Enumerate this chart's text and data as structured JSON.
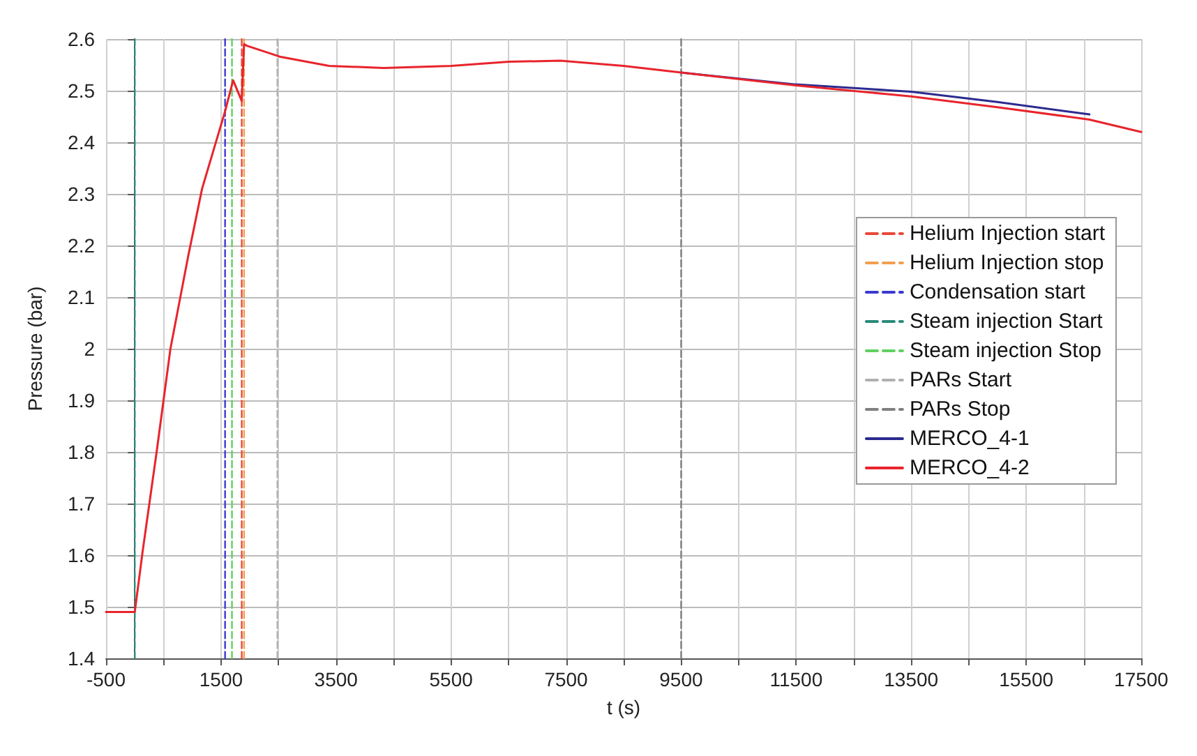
{
  "chart_data": {
    "type": "line",
    "xlabel": "t (s)",
    "ylabel": "Pressure (bar)",
    "xlim": [
      -500,
      17500
    ],
    "xticks": [
      -500,
      {
        "value": 500,
        "label": null
      },
      1500,
      {
        "value": 2500,
        "label": null
      },
      3500,
      {
        "value": 4500,
        "label": null
      },
      5500,
      {
        "value": 6500,
        "label": null
      },
      7500,
      {
        "value": 8500,
        "label": null
      },
      9500,
      {
        "value": 10500,
        "label": null
      },
      11500,
      {
        "value": 12500,
        "label": null
      },
      13500,
      {
        "value": 14500,
        "label": null
      },
      15500,
      {
        "value": 16500,
        "label": null
      },
      17500
    ],
    "ylim": [
      1.4,
      2.6
    ],
    "yticks": [
      1.4,
      1.5,
      1.6,
      1.7,
      1.8,
      1.9,
      2.0,
      2.1,
      2.2,
      2.3,
      2.4,
      2.5,
      2.6
    ],
    "grid": true,
    "legend": "right",
    "marker": "none",
    "series": [
      {
        "name": "Helium Injection start",
        "color": "#e84a3a",
        "line_style": "dashed",
        "x": [
          1860,
          1860
        ],
        "values": [
          1.4,
          2.6
        ]
      },
      {
        "name": "Helium Injection stop",
        "color": "#f0a050",
        "line_style": "dashed",
        "x": [
          1900,
          1900
        ],
        "values": [
          1.4,
          2.6
        ]
      },
      {
        "name": "Condensation start",
        "color": "#3a3ad0",
        "line_style": "dashed",
        "x": [
          1570,
          1570
        ],
        "values": [
          1.4,
          2.6
        ]
      },
      {
        "name": "Steam injection Start",
        "color": "#2a8a7a",
        "line_style": "dashed",
        "x": [
          0,
          0
        ],
        "values": [
          1.4,
          2.6
        ]
      },
      {
        "name": "Steam injection Stop",
        "color": "#60d060",
        "line_style": "dashed",
        "x": [
          1690,
          1690
        ],
        "values": [
          1.4,
          2.6
        ]
      },
      {
        "name": "PARs Start",
        "color": "#b0b0b0",
        "line_style": "dashed",
        "x": [
          2480,
          2480
        ],
        "values": [
          1.4,
          2.6
        ]
      },
      {
        "name": "PARs Stop",
        "color": "#808080",
        "line_style": "dashed",
        "x": [
          9500,
          9500
        ],
        "values": [
          1.4,
          2.6
        ]
      },
      {
        "name": "MERCO_4-1",
        "color": "#2b2b8f",
        "line_style": "solid",
        "x": [
          9500,
          11500,
          13500,
          15000,
          16600
        ],
        "values": [
          2.535,
          2.512,
          2.498,
          2.478,
          2.454
        ]
      },
      {
        "name": "MERCO_4-2",
        "color": "#e8242c",
        "line_style": "solid",
        "x": [
          -500,
          0,
          140,
          380,
          620,
          930,
          1170,
          1570,
          1710,
          1860,
          1900,
          1950,
          2520,
          3380,
          4330,
          5500,
          6500,
          7400,
          8500,
          9500,
          11500,
          13500,
          15000,
          16600,
          17500
        ],
        "values": [
          1.49,
          1.49,
          1.61,
          1.8,
          2.0,
          2.18,
          2.31,
          2.46,
          2.52,
          2.48,
          2.59,
          2.587,
          2.566,
          2.548,
          2.544,
          2.548,
          2.556,
          2.558,
          2.548,
          2.535,
          2.51,
          2.489,
          2.468,
          2.444,
          2.42
        ]
      }
    ]
  }
}
